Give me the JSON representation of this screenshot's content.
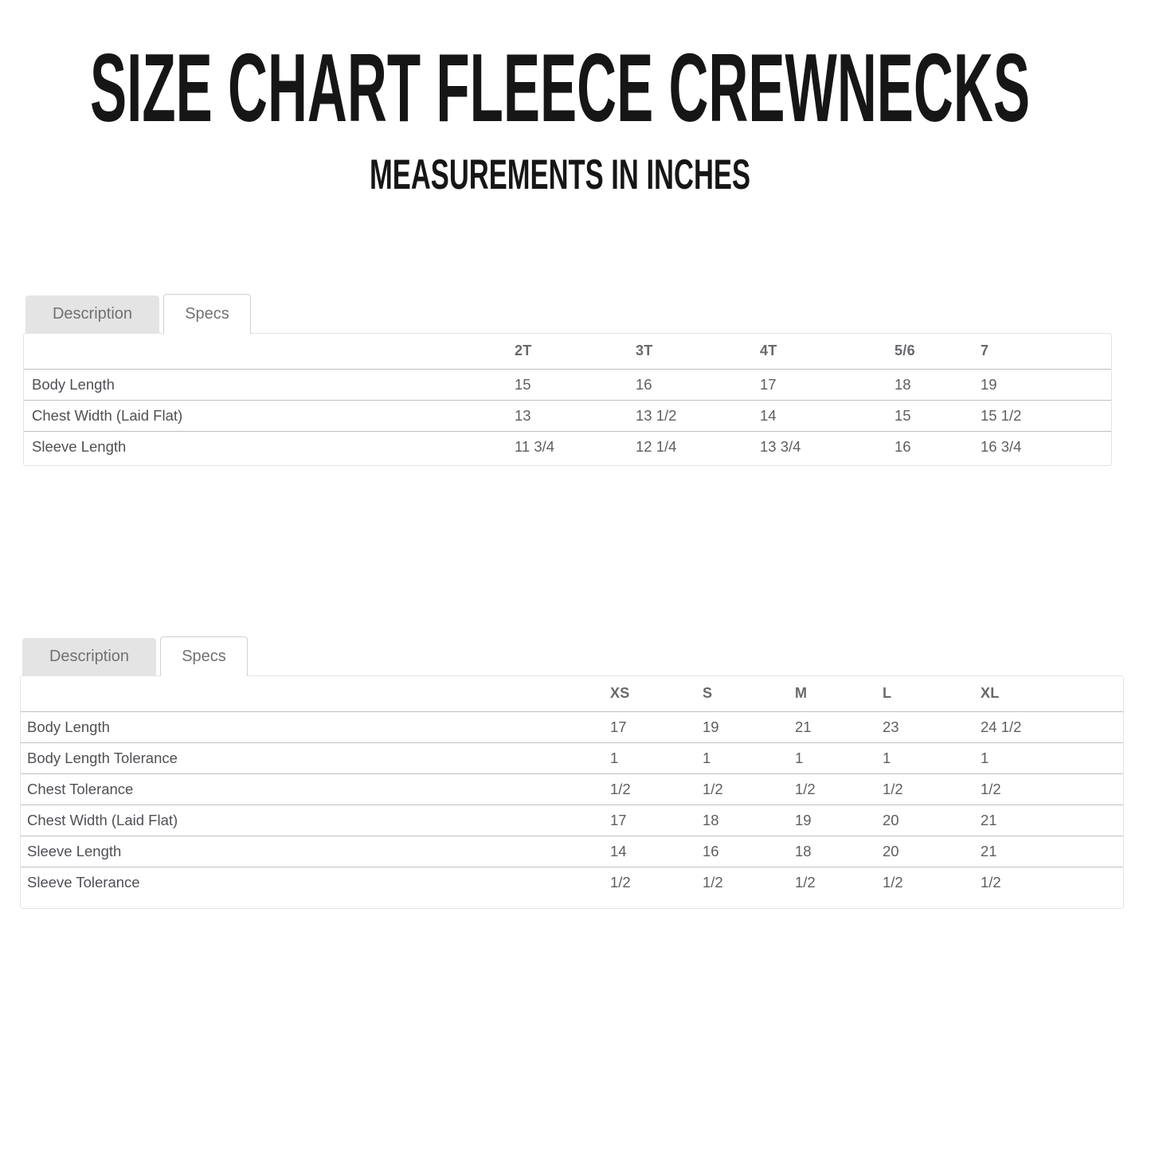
{
  "page": {
    "title": "SIZE CHART FLEECE CREWNECKS",
    "subtitle": "MEASUREMENTS IN INCHES"
  },
  "colors": {
    "heading": "#161616",
    "text-primary": "#4f5054",
    "text-secondary": "#5d5e61",
    "header-text": "#68696c",
    "tab-text": "#707174",
    "tab-bg-inactive": "#e4e4e4",
    "tab-border": "#d2d2d2",
    "divider": "#bfc0c2",
    "box-border": "#e3e4e6"
  },
  "tables": [
    {
      "name": "toddler-youth-sizes",
      "tabs": [
        {
          "label": "Description",
          "active": false
        },
        {
          "label": "Specs",
          "active": true
        }
      ],
      "columns": [
        "",
        "2T",
        "3T",
        "4T",
        "5/6",
        "7"
      ],
      "rows": [
        {
          "label": "Body Length",
          "values": [
            "15",
            "16",
            "17",
            "18",
            "19"
          ]
        },
        {
          "label": "Chest Width (Laid Flat)",
          "values": [
            "13",
            "13 1/2",
            "14",
            "15",
            "15 1/2"
          ]
        },
        {
          "label": "Sleeve Length",
          "values": [
            "11 3/4",
            "12 1/4",
            "13 3/4",
            "16",
            "16 3/4"
          ]
        }
      ]
    },
    {
      "name": "adult-sizes",
      "tabs": [
        {
          "label": "Description",
          "active": false
        },
        {
          "label": "Specs",
          "active": true
        }
      ],
      "columns": [
        "",
        "XS",
        "S",
        "M",
        "L",
        "XL"
      ],
      "rows": [
        {
          "label": "Body Length",
          "values": [
            "17",
            "19",
            "21",
            "23",
            "24 1/2"
          ]
        },
        {
          "label": "Body Length Tolerance",
          "values": [
            "1",
            "1",
            "1",
            "1",
            "1"
          ]
        },
        {
          "label": "Chest Tolerance",
          "values": [
            "1/2",
            "1/2",
            "1/2",
            "1/2",
            "1/2"
          ]
        },
        {
          "label": "Chest Width (Laid Flat)",
          "values": [
            "17",
            "18",
            "19",
            "20",
            "21"
          ]
        },
        {
          "label": "Sleeve Length",
          "values": [
            "14",
            "16",
            "18",
            "20",
            "21"
          ]
        },
        {
          "label": "Sleeve Tolerance",
          "values": [
            "1/2",
            "1/2",
            "1/2",
            "1/2",
            "1/2"
          ]
        }
      ]
    }
  ]
}
